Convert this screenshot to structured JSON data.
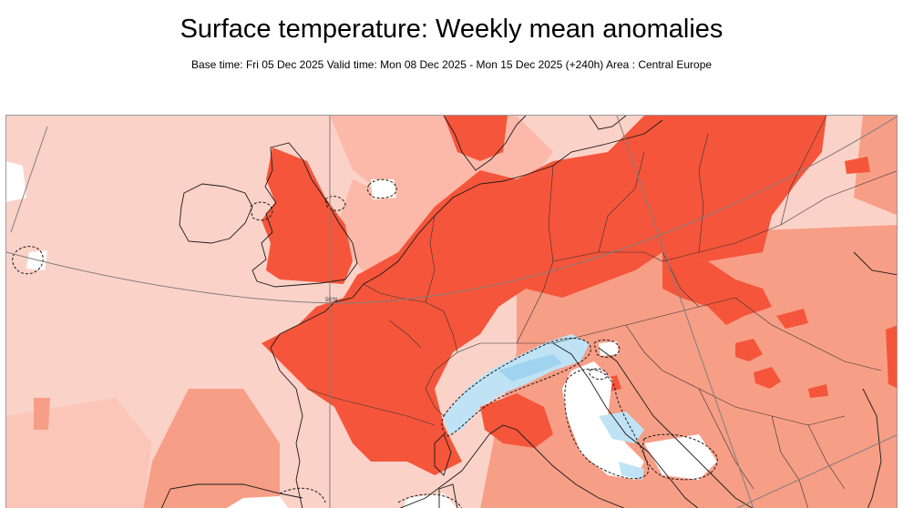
{
  "header": {
    "title": "Surface temperature: Weekly mean anomalies",
    "subtitle": "Base time: Fri 05 Dec 2025 Valid time: Mon 08 Dec 2025 - Mon 15 Dec 2025 (+240h) Area : Central Europe"
  },
  "map": {
    "grid_label": "50°N",
    "colors": {
      "background_light": "#fbd2c8",
      "light_anomaly": "#fcb9a9",
      "medium_anomaly": "#f79e87",
      "strong_anomaly": "#f5553a",
      "neutral": "#ffffff",
      "cold_anomaly": "#bfe3f5",
      "cold_strong": "#9fd3ef",
      "coastline": "#1a1a1a",
      "grid_line": "#7f7f7f"
    }
  }
}
